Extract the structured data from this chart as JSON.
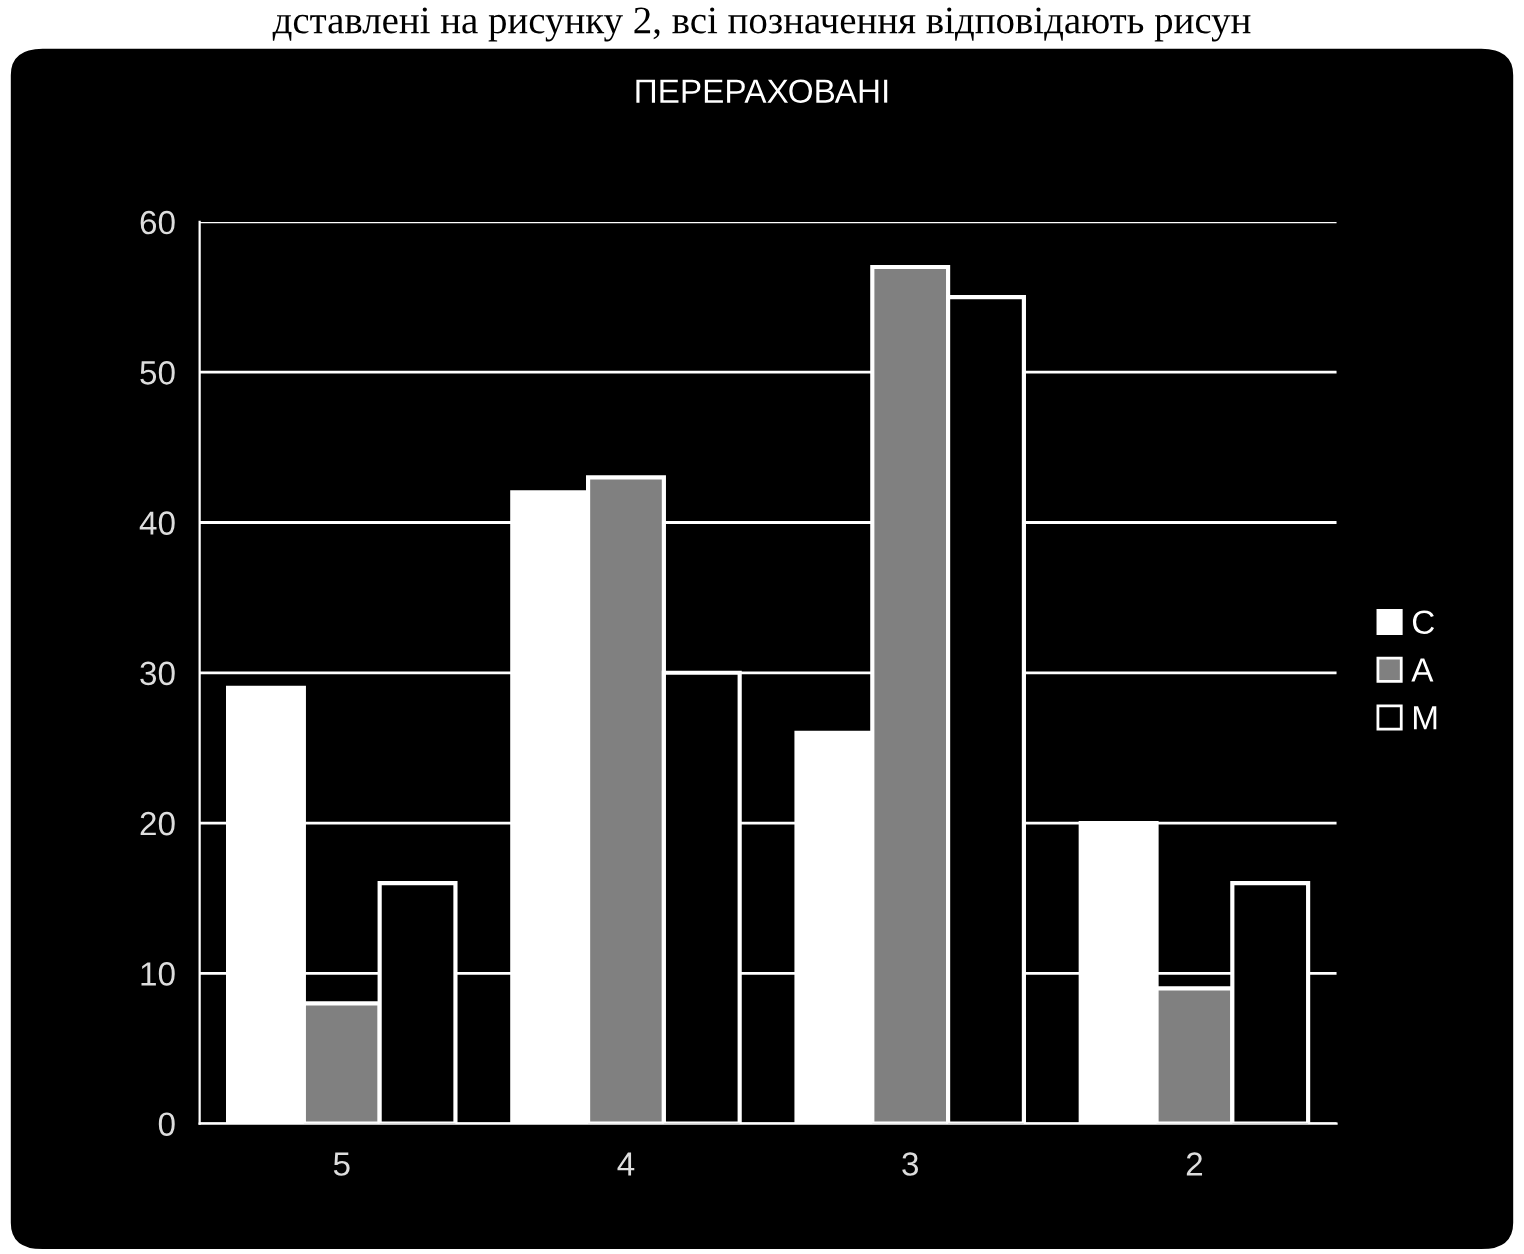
{
  "chart_data": {
    "type": "bar",
    "title": "ПЕРЕРАХОВАНІ",
    "annotations": [
      "дставлені на рисунку 2, всі позначення відповідають рисун"
    ],
    "categories": [
      "5",
      "4",
      "3",
      "2"
    ],
    "series": [
      {
        "name": "C",
        "color": "#ffffff",
        "values": [
          29,
          42,
          26,
          20
        ]
      },
      {
        "name": "A",
        "color": "#808080",
        "values": [
          8,
          43,
          57,
          9
        ]
      },
      {
        "name": "M",
        "color": "#000000",
        "values": [
          16,
          30,
          55,
          16
        ]
      }
    ],
    "ylim": [
      0,
      60
    ],
    "yticks": [
      0,
      10,
      20,
      30,
      40,
      50,
      60
    ],
    "grid": "y",
    "legend": "right"
  }
}
